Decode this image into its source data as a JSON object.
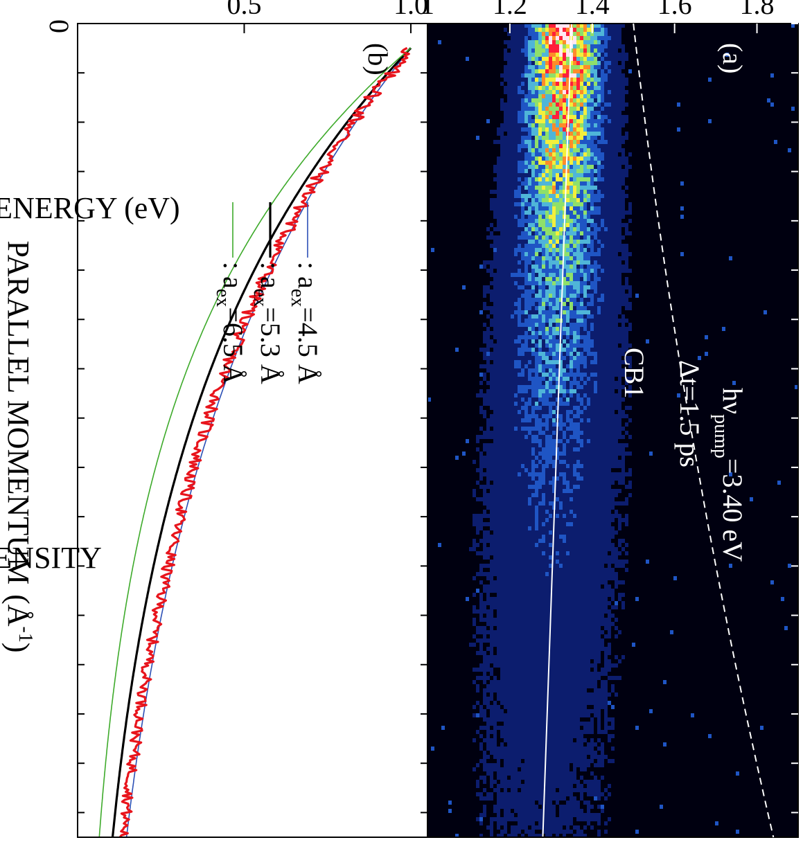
{
  "chart_data": [
    {
      "panel": "(a)",
      "type": "heatmap",
      "ylabel": "KINETIC ENERGY  (eV)",
      "yticks": [
        "1.8",
        "1.6",
        "1.4",
        "1.2",
        "1"
      ],
      "ylim": [
        1.0,
        1.9
      ],
      "annotations": {
        "pump": "hν",
        "pump_sub": "pump",
        "pump_val": "=3.40 eV",
        "delay": "Δt=1.5 ps",
        "band": "CB1"
      },
      "white_line": {
        "energy_at_k0": 1.35,
        "energy_at_kmax": 1.28
      },
      "dashed_line": {
        "energy_at_k0": 1.5,
        "energy_at_kmax": 1.84
      },
      "intensity_peak": {
        "energy": 1.34,
        "energy_spread": [
          0.06,
          0.14
        ]
      },
      "colormap": [
        "#000010",
        "#0c1d6e",
        "#1f55c4",
        "#4fb5d8",
        "#8fe06a",
        "#f3ef3c",
        "#ff8b2a",
        "#ff1f3a",
        "#ffe7f2"
      ]
    },
    {
      "panel": "(b)",
      "type": "line",
      "xlabel": "PARALLEL MOMENTUM",
      "xunit": "(Å",
      "xunit_sup": "-1",
      "xunit_close": ")",
      "ylabel": "INTENSITY",
      "xtick_label": "0",
      "yticks": [
        "1.0",
        "0.5"
      ],
      "ylim": [
        0,
        1.05
      ],
      "xlim": [
        0,
        1
      ],
      "legend_placement": "upper-right",
      "series": [
        {
          "label_pre": ": a",
          "label_sub": "ex",
          "label_post": "=4.5 Å",
          "color": "#2b4fb5",
          "width": 1.6,
          "decay": 1.72
        },
        {
          "label_pre": ": a",
          "label_sub": "ex",
          "label_post": "=5.3 Å",
          "color": "#000000",
          "width": 3.2,
          "decay": 2.02
        },
        {
          "label_pre": ": a",
          "label_sub": "ex",
          "label_post": "=6.5 Å",
          "color": "#3daa2a",
          "width": 1.6,
          "decay": 2.45
        }
      ],
      "measured": {
        "color": "#e8141c",
        "width": 3.2,
        "decay": 1.78
      }
    }
  ]
}
